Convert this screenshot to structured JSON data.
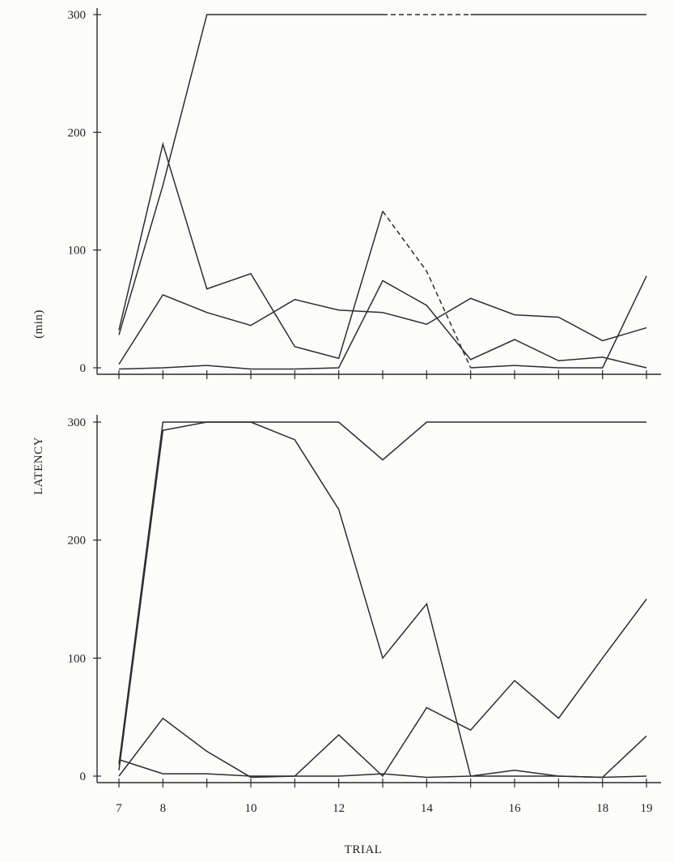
{
  "y_axis_label": "LATENCY",
  "y_axis_unit": "(min)",
  "x_axis_label": "TRIAL",
  "chart_data": [
    {
      "type": "line",
      "panel": "top",
      "xlabel": "",
      "ylabel": "",
      "xlim": [
        7,
        19
      ],
      "ylim": [
        0,
        300
      ],
      "yticks": [
        0,
        100,
        200,
        300
      ],
      "xticks": [
        7,
        8,
        9,
        10,
        11,
        12,
        13,
        14,
        15,
        16,
        17,
        18,
        19
      ],
      "xtick_labels": [],
      "series": [
        {
          "x": [
            7,
            8,
            9,
            10,
            11,
            12,
            13,
            14,
            15,
            16,
            17,
            18,
            19
          ],
          "values": [
            28,
            155,
            300,
            300,
            300,
            300,
            300,
            300,
            300,
            300,
            300,
            300,
            300
          ],
          "dashed_from_x": 13,
          "dashed_to_x": 15
        },
        {
          "x": [
            7,
            8,
            9,
            10,
            11,
            12,
            13,
            14,
            15,
            16,
            17,
            18,
            19
          ],
          "values": [
            32,
            190,
            67,
            80,
            18,
            8,
            133,
            82,
            0,
            2,
            0,
            0,
            78
          ],
          "dashed_from_x": 13,
          "dashed_to_x": 15
        },
        {
          "x": [
            7,
            8,
            9,
            10,
            11,
            12,
            13,
            14,
            15,
            16,
            17,
            18,
            19
          ],
          "values": [
            3,
            62,
            47,
            36,
            58,
            49,
            47,
            37,
            59,
            45,
            43,
            23,
            34
          ]
        },
        {
          "x": [
            7,
            8,
            9,
            10,
            11,
            12,
            13,
            14,
            15,
            16,
            17,
            18,
            19
          ],
          "values": [
            -1,
            0,
            2,
            -1,
            -1,
            0,
            74,
            53,
            7,
            24,
            6,
            9,
            0
          ]
        }
      ]
    },
    {
      "type": "line",
      "panel": "bottom",
      "xlabel": "TRIAL",
      "ylabel": "",
      "xlim": [
        7,
        19
      ],
      "ylim": [
        0,
        300
      ],
      "yticks": [
        0,
        100,
        200,
        300
      ],
      "xticks": [
        7,
        8,
        9,
        10,
        11,
        12,
        13,
        14,
        15,
        16,
        17,
        18,
        19
      ],
      "xtick_labels": [
        "7",
        "8",
        "10",
        "12",
        "14",
        "16",
        "18",
        "19"
      ],
      "series": [
        {
          "x": [
            7,
            8,
            9,
            10,
            11,
            12,
            13,
            14,
            15,
            16,
            17,
            18,
            19
          ],
          "values": [
            10,
            300,
            300,
            300,
            300,
            300,
            268,
            300,
            300,
            300,
            300,
            300,
            300
          ]
        },
        {
          "x": [
            7,
            8,
            9,
            10,
            11,
            12,
            13,
            14,
            15,
            16,
            17,
            18,
            19
          ],
          "values": [
            5,
            293,
            300,
            300,
            285,
            226,
            100,
            146,
            0,
            0,
            0,
            -1,
            0
          ]
        },
        {
          "x": [
            7,
            8,
            9,
            10,
            11,
            12,
            13,
            14,
            15,
            16,
            17,
            18,
            19
          ],
          "values": [
            0,
            49,
            21,
            -1,
            0,
            35,
            0,
            58,
            39,
            81,
            49,
            100,
            150
          ]
        },
        {
          "x": [
            7,
            8,
            9,
            10,
            11,
            12,
            13,
            14,
            15,
            16,
            17,
            18,
            19
          ],
          "values": [
            14,
            2,
            2,
            0,
            0,
            0,
            2,
            -1,
            0,
            5,
            0,
            -1,
            34
          ]
        }
      ]
    }
  ]
}
